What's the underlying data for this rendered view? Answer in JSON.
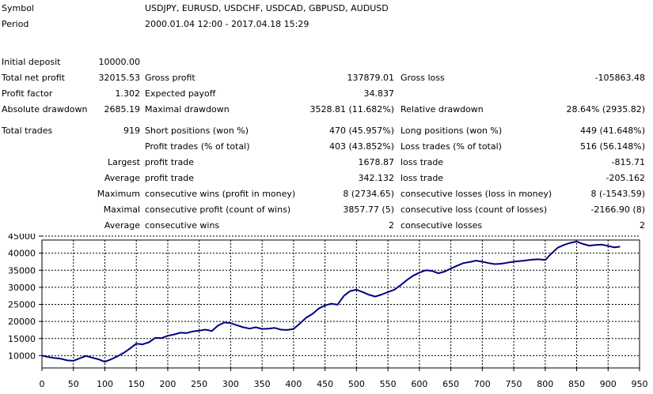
{
  "header": {
    "symbol_label": "Symbol",
    "symbol_value": "USDJPY, EURUSD, USDCHF, USDCAD, GBPUSD, AUDUSD",
    "period_label": "Period",
    "period_value": "2000.01.04 12:00 - 2017.04.18 15:29"
  },
  "stats": {
    "initial_deposit_label": "Initial deposit",
    "initial_deposit": "10000.00",
    "total_net_profit_label": "Total net profit",
    "total_net_profit": "32015.53",
    "gross_profit_label": "Gross profit",
    "gross_profit": "137879.01",
    "gross_loss_label": "Gross loss",
    "gross_loss": "-105863.48",
    "profit_factor_label": "Profit factor",
    "profit_factor": "1.302",
    "expected_payoff_label": "Expected payoff",
    "expected_payoff": "34.837",
    "absolute_drawdown_label": "Absolute drawdown",
    "absolute_drawdown": "2685.19",
    "maximal_drawdown_label": "Maximal drawdown",
    "maximal_drawdown": "3528.81 (11.682%)",
    "relative_drawdown_label": "Relative drawdown",
    "relative_drawdown": "28.64% (2935.82)",
    "total_trades_label": "Total trades",
    "total_trades": "919",
    "short_positions_label": "Short positions (won %)",
    "short_positions": "470 (45.957%)",
    "long_positions_label": "Long positions (won %)",
    "long_positions": "449 (41.648%)",
    "profit_trades_label": "Profit trades (% of total)",
    "profit_trades": "403 (43.852%)",
    "loss_trades_label": "Loss trades (% of total)",
    "loss_trades": "516 (56.148%)",
    "largest_label": "Largest",
    "largest_profit_label": "profit trade",
    "largest_profit": "1678.87",
    "largest_loss_label": "loss trade",
    "largest_loss": "-815.71",
    "average_label": "Average",
    "average_profit_label": "profit trade",
    "average_profit": "342.132",
    "average_loss_label": "loss trade",
    "average_loss": "-205.162",
    "maximum_label": "Maximum",
    "max_consec_wins_label": "consecutive wins (profit in money)",
    "max_consec_wins": "8 (2734.65)",
    "max_consec_losses_label": "consecutive losses (loss in money)",
    "max_consec_losses": "8 (-1543.59)",
    "maximal_label": "Maximal",
    "maximal_consec_profit_label": "consecutive profit (count of wins)",
    "maximal_consec_profit": "3857.77 (5)",
    "maximal_consec_loss_label": "consecutive loss (count of losses)",
    "maximal_consec_loss": "-2166.90 (8)",
    "average2_label": "Average",
    "avg_consec_wins_label": "consecutive wins",
    "avg_consec_wins": "2",
    "avg_consec_losses_label": "consecutive losses",
    "avg_consec_losses": "2"
  },
  "chart_data": {
    "type": "line",
    "grid": true,
    "xlim": [
      0,
      950
    ],
    "ylim": [
      5000,
      45000
    ],
    "x_ticks": [
      0,
      50,
      100,
      150,
      200,
      250,
      300,
      350,
      400,
      450,
      500,
      550,
      600,
      650,
      700,
      750,
      800,
      850,
      900,
      950
    ],
    "y_ticks": [
      10000,
      15000,
      20000,
      25000,
      30000,
      35000,
      40000,
      45000
    ],
    "line_color": "#000080",
    "series": [
      {
        "x": [
          0,
          10,
          20,
          30,
          40,
          50,
          60,
          70,
          80,
          90,
          100,
          110,
          120,
          130,
          140,
          150,
          160,
          170,
          180,
          190,
          200,
          210,
          220,
          230,
          240,
          250,
          260,
          270,
          280,
          290,
          300,
          310,
          320,
          330,
          340,
          350,
          360,
          370,
          380,
          390,
          400,
          410,
          420,
          430,
          440,
          450,
          460,
          470,
          480,
          490,
          500,
          510,
          520,
          530,
          540,
          550,
          560,
          570,
          580,
          590,
          600,
          610,
          620,
          630,
          640,
          650,
          660,
          670,
          680,
          690,
          700,
          710,
          720,
          730,
          740,
          750,
          760,
          770,
          780,
          790,
          800,
          810,
          820,
          830,
          840,
          850,
          860,
          870,
          880,
          890,
          900,
          910,
          919
        ],
        "y": [
          10000,
          9600,
          9300,
          9100,
          8600,
          8500,
          9200,
          9900,
          9400,
          8900,
          8200,
          8900,
          9800,
          10800,
          12100,
          13500,
          13300,
          13900,
          15200,
          15100,
          15800,
          16200,
          16700,
          16600,
          17100,
          17300,
          17600,
          17200,
          18800,
          19700,
          19500,
          18900,
          18300,
          17900,
          18300,
          17800,
          17900,
          18100,
          17600,
          17500,
          17800,
          19400,
          21100,
          22200,
          23800,
          24700,
          25200,
          24900,
          27500,
          28900,
          29300,
          28600,
          27800,
          27300,
          27900,
          28600,
          29300,
          30600,
          32100,
          33400,
          34300,
          35000,
          34800,
          34100,
          34600,
          35500,
          36300,
          37100,
          37400,
          37800,
          37500,
          37100,
          36800,
          36900,
          37200,
          37500,
          37700,
          37900,
          38100,
          38200,
          38000,
          39900,
          41600,
          42400,
          43000,
          43400,
          42700,
          42200,
          42400,
          42500,
          42100,
          41700,
          41900
        ]
      }
    ]
  }
}
